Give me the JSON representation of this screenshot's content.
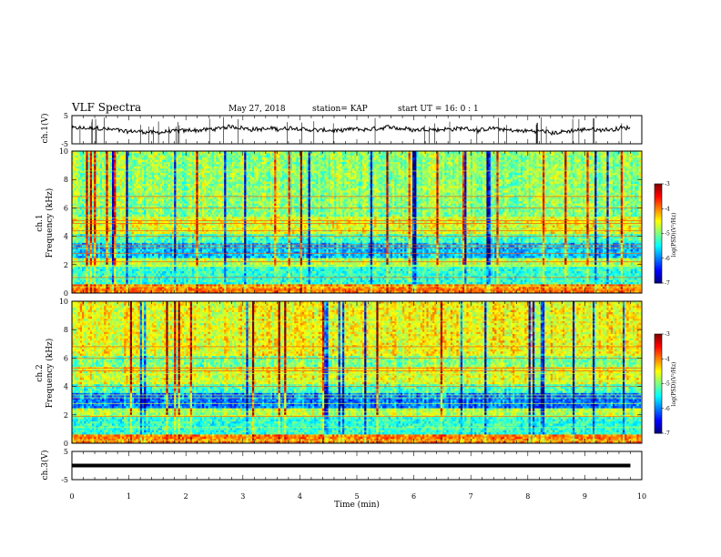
{
  "header": {
    "title": "VLF Spectra",
    "date": "May 27, 2018",
    "station": "station= KAP",
    "start": "start  UT =   16: 0  : 1"
  },
  "chart_data": [
    {
      "type": "line",
      "panel": "top",
      "ylabel": "ch.1(V)",
      "yticks": [
        "5",
        "-5"
      ],
      "ylim": [
        -5,
        5
      ],
      "xlim": [
        0,
        10
      ],
      "data_extent_min": [
        0,
        9.8
      ],
      "note_series": "noisy waveform near zero"
    },
    {
      "type": "heatmap",
      "panel": "ch1",
      "ylabel": "ch.1\nFrequency (kHz)",
      "ylabel_lines": [
        "ch.1",
        "Frequency (kHz)"
      ],
      "yticks": [
        "0",
        "2",
        "4",
        "6",
        "8",
        "10"
      ],
      "ylim": [
        0,
        10
      ],
      "xlim": [
        0,
        10
      ],
      "colorbar": {
        "ticks": [
          "-3",
          "-4",
          "-5",
          "-6",
          "-7"
        ],
        "range": [
          -7,
          -3
        ],
        "label": "log(PSD)(V²/Hz)"
      }
    },
    {
      "type": "heatmap",
      "panel": "ch2",
      "ylabel_lines": [
        "ch.2",
        "Frequency (kHz)"
      ],
      "yticks": [
        "0",
        "2",
        "4",
        "6",
        "8",
        "10"
      ],
      "ylim": [
        0,
        10
      ],
      "xlim": [
        0,
        10
      ],
      "colorbar": {
        "ticks": [
          "-3",
          "-4",
          "-5",
          "-6",
          "-7"
        ],
        "range": [
          -7,
          -3
        ],
        "label": "log(PSD)(V²/Hz)"
      }
    },
    {
      "type": "line",
      "panel": "bottom",
      "ylabel": "ch.3(V)",
      "yticks": [
        "5",
        "-5"
      ],
      "ylim": [
        -5,
        5
      ],
      "xlim": [
        0,
        10
      ],
      "series_value": 0
    }
  ],
  "xaxis": {
    "label": "Time (min)",
    "ticks": [
      "0",
      "1",
      "2",
      "3",
      "4",
      "5",
      "6",
      "7",
      "8",
      "9",
      "10"
    ]
  }
}
